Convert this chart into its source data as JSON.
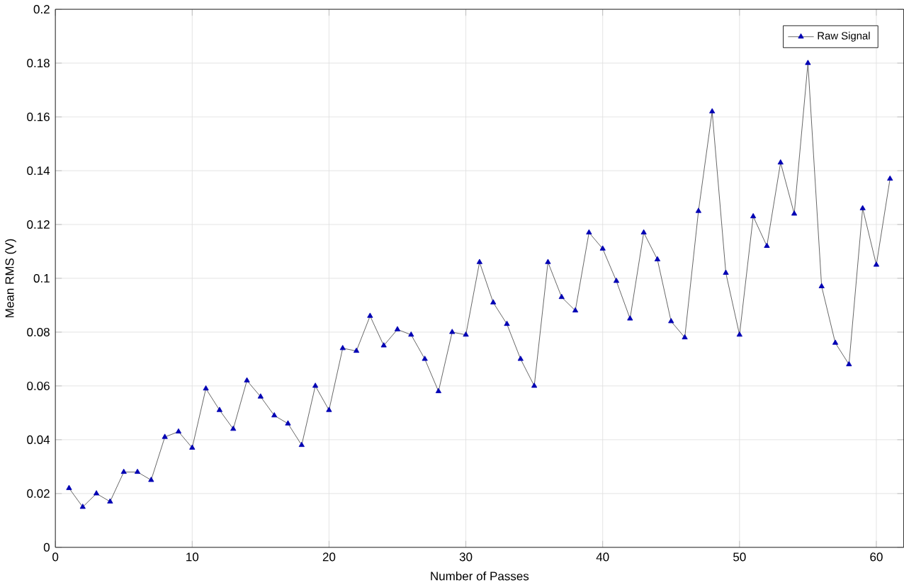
{
  "chart_data": {
    "type": "line",
    "xlabel": "Number of Passes",
    "ylabel": "Mean RMS (V)",
    "x": [
      1,
      2,
      3,
      4,
      5,
      6,
      7,
      8,
      9,
      10,
      11,
      12,
      13,
      14,
      15,
      16,
      17,
      18,
      19,
      20,
      21,
      22,
      23,
      24,
      25,
      26,
      27,
      28,
      29,
      30,
      31,
      32,
      33,
      34,
      35,
      36,
      37,
      38,
      39,
      40,
      41,
      42,
      43,
      44,
      45,
      46,
      47,
      48,
      49,
      50,
      51,
      52,
      53,
      54,
      55,
      56,
      57,
      58,
      59,
      60,
      61
    ],
    "series": [
      {
        "name": "Raw Signal",
        "color": "#0000b4",
        "values": [
          0.022,
          0.015,
          0.02,
          0.017,
          0.028,
          0.028,
          0.025,
          0.041,
          0.043,
          0.037,
          0.059,
          0.051,
          0.044,
          0.062,
          0.056,
          0.049,
          0.046,
          0.038,
          0.06,
          0.051,
          0.074,
          0.073,
          0.086,
          0.075,
          0.081,
          0.079,
          0.07,
          0.058,
          0.08,
          0.079,
          0.106,
          0.091,
          0.083,
          0.07,
          0.06,
          0.106,
          0.093,
          0.088,
          0.117,
          0.111,
          0.099,
          0.085,
          0.117,
          0.107,
          0.084,
          0.078,
          0.125,
          0.162,
          0.102,
          0.079,
          0.123,
          0.112,
          0.143,
          0.124,
          0.18,
          0.097,
          0.076,
          0.068,
          0.126,
          0.105,
          0.137
        ]
      }
    ],
    "xlim": [
      0,
      62
    ],
    "ylim": [
      0,
      0.2
    ],
    "xticks": [
      0,
      10,
      20,
      30,
      40,
      50,
      60
    ],
    "yticks": [
      0,
      0.02,
      0.04,
      0.06,
      0.08,
      0.1,
      0.12,
      0.14,
      0.16,
      0.18,
      0.2
    ],
    "grid": true,
    "legend": "top right",
    "marker": "triangle",
    "line_style": "solid"
  }
}
